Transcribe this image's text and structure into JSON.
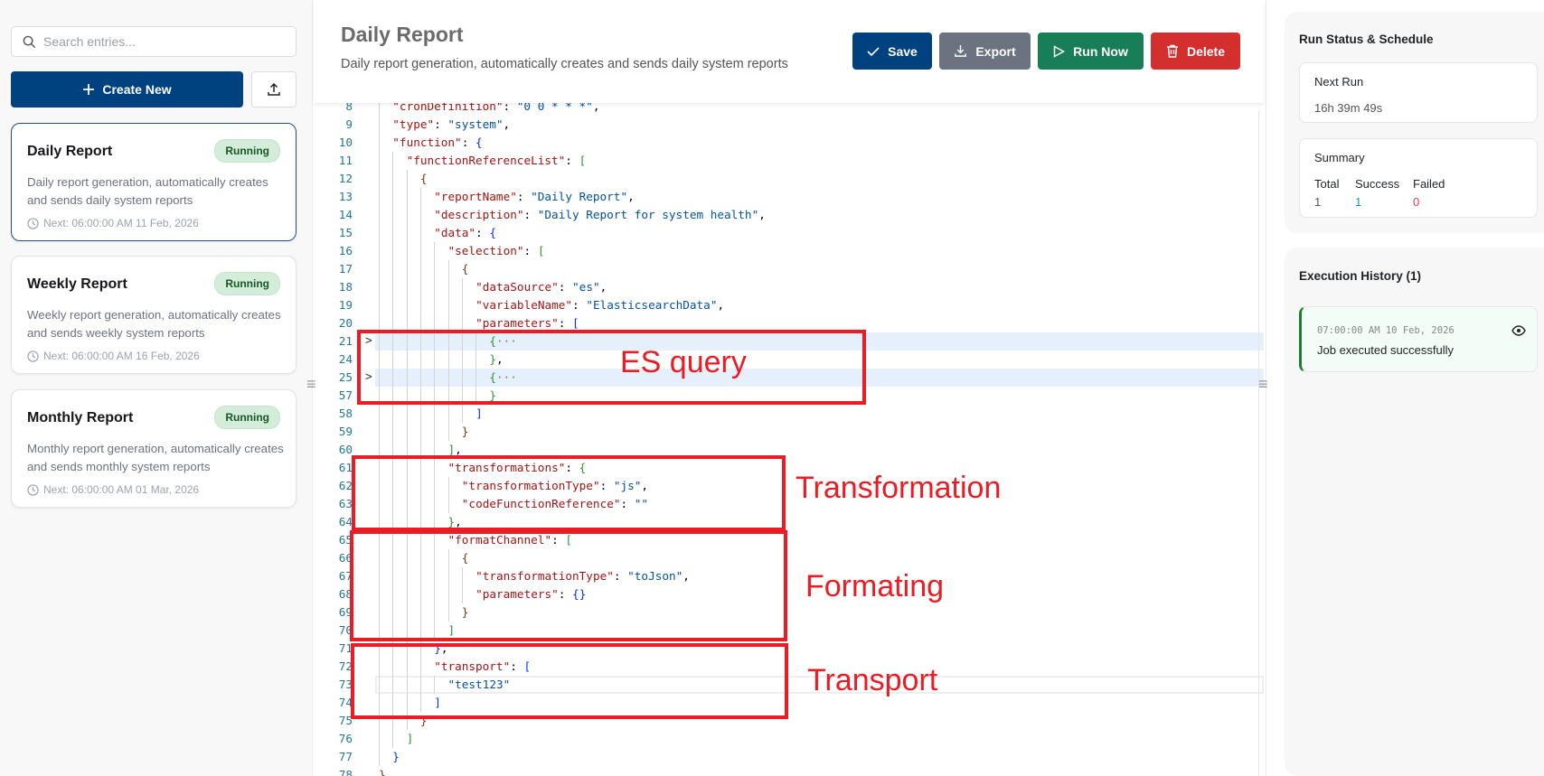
{
  "sidebar": {
    "search_placeholder": "Search entries...",
    "create_label": "Create New",
    "items": [
      {
        "title": "Daily Report",
        "status": "Running",
        "description": "Daily report generation, automatically creates and sends daily system reports",
        "next": "Next: 06:00:00 AM 11 Feb, 2026",
        "selected": true
      },
      {
        "title": "Weekly Report",
        "status": "Running",
        "description": "Weekly report generation, automatically creates and sends weekly system reports",
        "next": "Next: 06:00:00 AM 16 Feb, 2026"
      },
      {
        "title": "Monthly Report",
        "status": "Running",
        "description": "Monthly report generation, automatically creates and sends monthly system reports",
        "next": "Next: 06:00:00 AM 01 Mar, 2026"
      }
    ]
  },
  "header": {
    "title": "Daily Report",
    "subtitle": "Daily report generation, automatically creates and sends daily system reports",
    "buttons": {
      "save": "Save",
      "export": "Export",
      "run": "Run Now",
      "delete": "Delete"
    },
    "colors": {
      "save": "#00427f",
      "export": "#6b7280",
      "run": "#177e57",
      "delete": "#d32f2f"
    }
  },
  "editor": {
    "lines": [
      {
        "n": 8,
        "i": 1,
        "t": "\"cronDefinition\": \"0 0 * * *\","
      },
      {
        "n": 9,
        "i": 1,
        "t": "\"type\": \"system\","
      },
      {
        "n": 10,
        "i": 1,
        "t": "\"function\": {"
      },
      {
        "n": 11,
        "i": 2,
        "t": "\"functionReferenceList\": ["
      },
      {
        "n": 12,
        "i": 3,
        "t": "{"
      },
      {
        "n": 13,
        "i": 4,
        "t": "\"reportName\": \"Daily Report\","
      },
      {
        "n": 14,
        "i": 4,
        "t": "\"description\": \"Daily Report for system health\","
      },
      {
        "n": 15,
        "i": 4,
        "t": "\"data\": {"
      },
      {
        "n": 16,
        "i": 5,
        "t": "\"selection\": ["
      },
      {
        "n": 17,
        "i": 6,
        "t": "{"
      },
      {
        "n": 18,
        "i": 7,
        "t": "\"dataSource\": \"es\","
      },
      {
        "n": 19,
        "i": 7,
        "t": "\"variableName\": \"ElasticsearchData\","
      },
      {
        "n": 20,
        "i": 7,
        "t": "\"parameters\": ["
      },
      {
        "n": 21,
        "i": 8,
        "t": "{",
        "folded": true
      },
      {
        "n": 24,
        "i": 8,
        "t": "},"
      },
      {
        "n": 25,
        "i": 8,
        "t": "{",
        "folded": true
      },
      {
        "n": 57,
        "i": 8,
        "t": "}"
      },
      {
        "n": 58,
        "i": 7,
        "t": "]"
      },
      {
        "n": 59,
        "i": 6,
        "t": "}"
      },
      {
        "n": 60,
        "i": 5,
        "t": "],"
      },
      {
        "n": 61,
        "i": 5,
        "t": "\"transformations\": {"
      },
      {
        "n": 62,
        "i": 6,
        "t": "\"transformationType\": \"js\","
      },
      {
        "n": 63,
        "i": 6,
        "t": "\"codeFunctionReference\": \"\""
      },
      {
        "n": 64,
        "i": 5,
        "t": "},"
      },
      {
        "n": 65,
        "i": 5,
        "t": "\"formatChannel\": ["
      },
      {
        "n": 66,
        "i": 6,
        "t": "{"
      },
      {
        "n": 67,
        "i": 7,
        "t": "\"transformationType\": \"toJson\","
      },
      {
        "n": 68,
        "i": 7,
        "t": "\"parameters\": {}"
      },
      {
        "n": 69,
        "i": 6,
        "t": "}"
      },
      {
        "n": 70,
        "i": 5,
        "t": "]"
      },
      {
        "n": 71,
        "i": 4,
        "t": "},"
      },
      {
        "n": 72,
        "i": 4,
        "t": "\"transport\": ["
      },
      {
        "n": 73,
        "i": 5,
        "t": "\"test123\"",
        "current": true
      },
      {
        "n": 74,
        "i": 4,
        "t": "]"
      },
      {
        "n": 75,
        "i": 3,
        "t": "}"
      },
      {
        "n": 76,
        "i": 2,
        "t": "]"
      },
      {
        "n": 77,
        "i": 1,
        "t": "}"
      },
      {
        "n": 78,
        "i": 0,
        "t": "}"
      }
    ],
    "annotations": [
      "ES query",
      "Transformation",
      "Formating",
      "Transport"
    ],
    "annotation_color": "#ed1c24"
  },
  "right": {
    "status_title": "Run Status & Schedule",
    "next_run_label": "Next Run",
    "next_run_value": "16h 39m 49s",
    "summary_label": "Summary",
    "summary": {
      "total_label": "Total",
      "success_label": "Success",
      "failed_label": "Failed",
      "total": "1",
      "success": "1",
      "failed": "0"
    },
    "history_title": "Execution History (1)",
    "history": [
      {
        "time": "07:00:00 AM 10 Feb, 2026",
        "message": "Job executed successfully"
      }
    ]
  }
}
